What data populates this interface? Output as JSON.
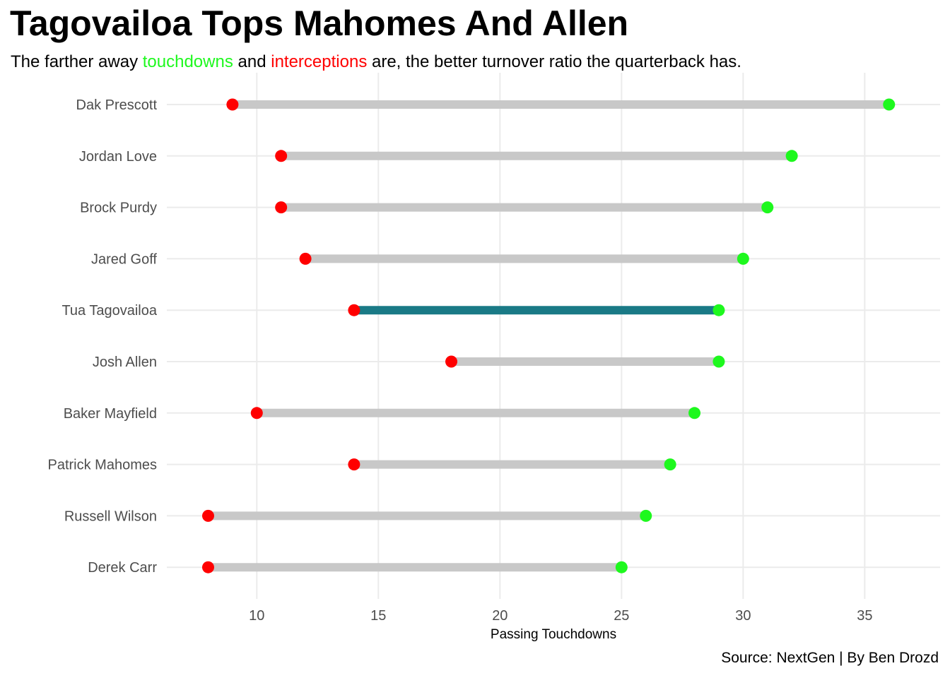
{
  "header": {
    "title": "Tagovailoa Tops Mahomes And Allen",
    "subtitle_parts": [
      {
        "text": "The farther away ",
        "color": "#000000"
      },
      {
        "text": "touchdowns",
        "color": "#1ef81e"
      },
      {
        "text": " and ",
        "color": "#000000"
      },
      {
        "text": "interceptions",
        "color": "#ff0000"
      },
      {
        "text": " are, the better turnover ratio the quarterback has.",
        "color": "#000000"
      }
    ]
  },
  "caption": "Source: NextGen | By Ben Drozd",
  "colors": {
    "touchdown_point": "#1ef81e",
    "interception_point": "#ff0000",
    "segment_default": "#c8c8c8",
    "segment_highlight": "#1a7a86",
    "grid": "#ebebeb"
  },
  "chart_data": {
    "type": "dumbbell",
    "xlabel": "Passing Touchdowns",
    "ylabel": "",
    "xlim": [
      6.3,
      38.1
    ],
    "x_ticks": [
      10,
      15,
      20,
      25,
      30,
      35
    ],
    "grid": true,
    "highlight": "Tua Tagovailoa",
    "categories": [
      "Dak Prescott",
      "Jordan Love",
      "Brock Purdy",
      "Jared Goff",
      "Tua Tagovailoa",
      "Josh Allen",
      "Baker Mayfield",
      "Patrick Mahomes",
      "Russell Wilson",
      "Derek Carr"
    ],
    "series": [
      {
        "name": "touchdowns",
        "values": [
          36,
          32,
          31,
          30,
          29,
          29,
          28,
          27,
          26,
          25
        ]
      },
      {
        "name": "interceptions",
        "values": [
          9,
          11,
          11,
          12,
          14,
          18,
          10,
          14,
          8,
          8
        ]
      }
    ]
  }
}
